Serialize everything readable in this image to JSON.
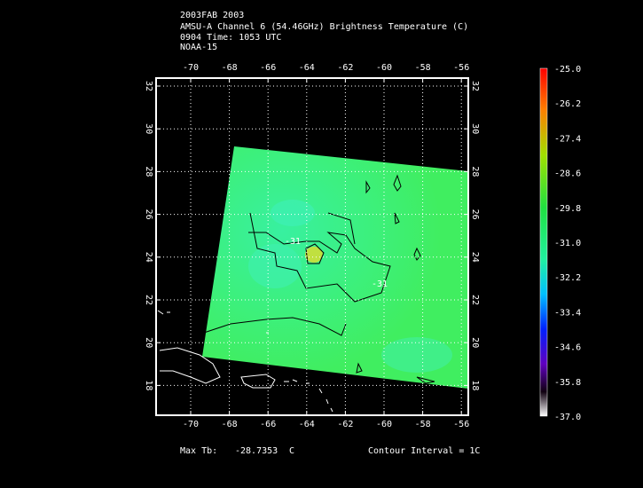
{
  "header": {
    "lines": [
      "2003FAB 2003",
      "AMSU-A Channel 6 (54.46GHz) Brightness Temperature (C)",
      "0904 Time: 1053 UTC",
      "NOAA-15"
    ]
  },
  "map": {
    "lon_ticks": [
      -70,
      -68,
      -66,
      -64,
      -62,
      -60,
      -58,
      -56
    ],
    "lat_ticks": [
      32,
      30,
      28,
      26,
      24,
      22,
      20,
      18
    ]
  },
  "contours": {
    "labels": [
      "-31",
      "-31"
    ]
  },
  "colorbar": {
    "labels": [
      "-25.0",
      "-26.2",
      "-27.4",
      "-28.6",
      "-29.8",
      "-31.0",
      "-32.2",
      "-33.4",
      "-34.6",
      "-35.8",
      "-37.0"
    ]
  },
  "footer": {
    "max_label": "Max Tb:",
    "max_value": "-28.7353",
    "unit": "C",
    "contour_interval": "Contour Interval = 1C"
  }
}
